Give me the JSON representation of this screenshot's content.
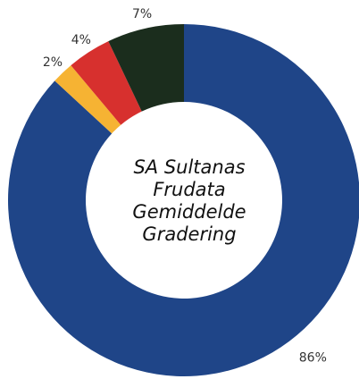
{
  "chart_data": {
    "type": "donut",
    "title": [
      "SA Sultanas",
      "Frudata",
      "Gemiddelde",
      "Gradering"
    ],
    "values": [
      86,
      2,
      4,
      7
    ],
    "value_labels": [
      "86%",
      "2%",
      "4%",
      "7%"
    ],
    "colors": [
      "#1f4588",
      "#f6b333",
      "#d7302e",
      "#1b2d1d"
    ]
  }
}
